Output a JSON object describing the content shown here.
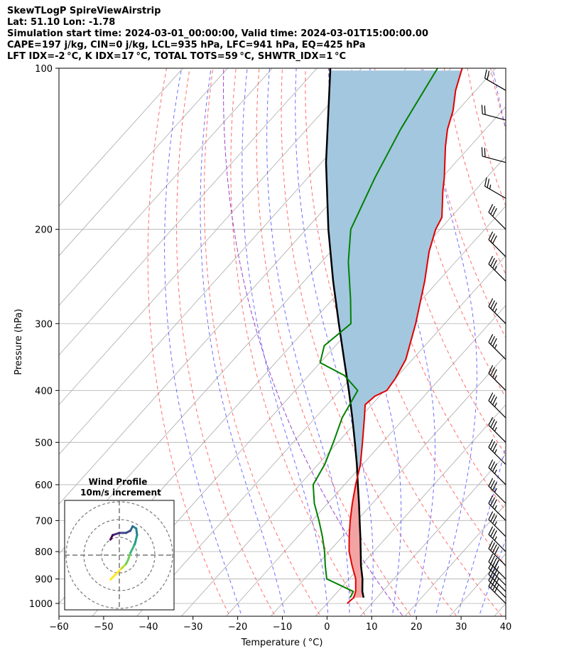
{
  "header": {
    "line1": "SkewTLogP SpireViewAirstrip",
    "line2": "Lat: 51.10   Lon: -1.78",
    "line3": "Simulation start time: 2024-03-01_00:00:00, Valid time: 2024-03-01T15:00:00.00",
    "line4": "CAPE=197 j/kg, CIN=0 j/kg, LCL=935 hPa, LFC=941 hPa, EQ=425 hPa",
    "line5": "LFT IDX=-2 °C, K IDX=17 °C, TOTAL TOTS=59 °C, SHWTR_IDX=1 °C"
  },
  "chart_data": [
    {
      "type": "skew-t log-p",
      "xlabel": "Temperature ( °C)",
      "ylabel": "Pressure (hPa)",
      "xlim": [
        -60,
        40
      ],
      "ylim": [
        1050,
        100
      ],
      "y_scale": "log",
      "x_ticks": [
        "−60",
        "−50",
        "−40",
        "−30",
        "−20",
        "−10",
        "0",
        "10",
        "20",
        "30",
        "40"
      ],
      "y_ticks": [
        "100",
        "200",
        "300",
        "400",
        "500",
        "600",
        "700",
        "800",
        "900",
        "1000"
      ],
      "grid": true,
      "series": [
        {
          "kind": "temperature",
          "color": "#e00000",
          "points": [
            [
              1000,
              4.5
            ],
            [
              975,
              4.8
            ],
            [
              950,
              4.0
            ],
            [
              900,
              1.5
            ],
            [
              850,
              -2.0
            ],
            [
              800,
              -5.5
            ],
            [
              750,
              -8.5
            ],
            [
              700,
              -11.5
            ],
            [
              650,
              -14.5
            ],
            [
              600,
              -17.5
            ],
            [
              550,
              -20.5
            ],
            [
              500,
              -24.5
            ],
            [
              450,
              -29.0
            ],
            [
              425,
              -31.5
            ],
            [
              410,
              -31.0
            ],
            [
              400,
              -29.5
            ],
            [
              380,
              -30.0
            ],
            [
              350,
              -31.5
            ],
            [
              300,
              -36.5
            ],
            [
              250,
              -43.0
            ],
            [
              220,
              -48.0
            ],
            [
              200,
              -51.0
            ],
            [
              190,
              -52.0
            ],
            [
              170,
              -57.0
            ],
            [
              160,
              -59.5
            ],
            [
              140,
              -65.5
            ],
            [
              130,
              -68.5
            ],
            [
              120,
              -71.0
            ],
            [
              110,
              -74.5
            ],
            [
              100,
              -77.5
            ]
          ]
        },
        {
          "kind": "dewpoint",
          "color": "#008000",
          "points": [
            [
              975,
              4.0
            ],
            [
              950,
              3.5
            ],
            [
              900,
              -5.0
            ],
            [
              850,
              -8.0
            ],
            [
              800,
              -11.0
            ],
            [
              750,
              -14.5
            ],
            [
              700,
              -18.5
            ],
            [
              650,
              -23.0
            ],
            [
              600,
              -27.0
            ],
            [
              550,
              -28.5
            ],
            [
              500,
              -31.0
            ],
            [
              450,
              -34.0
            ],
            [
              400,
              -36.0
            ],
            [
              375,
              -42.0
            ],
            [
              355,
              -50.0
            ],
            [
              330,
              -52.5
            ],
            [
              300,
              -51.0
            ],
            [
              270,
              -56.0
            ],
            [
              230,
              -64.0
            ],
            [
              200,
              -70.0
            ],
            [
              160,
              -75.0
            ],
            [
              130,
              -79.0
            ],
            [
              100,
              -83.0
            ]
          ]
        },
        {
          "kind": "parcel",
          "color": "#000000",
          "points": [
            [
              975,
              7.0
            ],
            [
              950,
              5.5
            ],
            [
              900,
              3.0
            ],
            [
              850,
              0.0
            ],
            [
              800,
              -2.9
            ],
            [
              750,
              -6.0
            ],
            [
              700,
              -9.4
            ],
            [
              650,
              -13.0
            ],
            [
              600,
              -17.0
            ],
            [
              550,
              -21.3
            ],
            [
              500,
              -26.2
            ],
            [
              450,
              -31.7
            ],
            [
              400,
              -38.0
            ],
            [
              350,
              -45.3
            ],
            [
              300,
              -53.7
            ],
            [
              250,
              -63.5
            ],
            [
              200,
              -75.0
            ],
            [
              150,
              -89.0
            ],
            [
              100,
              -107.0
            ]
          ]
        }
      ],
      "shading": [
        {
          "between": [
            "parcel",
            "temperature"
          ],
          "region": "parcel warmer",
          "color": "#f4a3a3"
        },
        {
          "between": [
            "parcel",
            "temperature"
          ],
          "region": "parcel colder",
          "color": "#a3c7df"
        }
      ],
      "wind_barbs": [
        {
          "p": 1000,
          "dir": 315,
          "speed": 40
        },
        {
          "p": 975,
          "dir": 315,
          "speed": 40
        },
        {
          "p": 950,
          "dir": 315,
          "speed": 40
        },
        {
          "p": 925,
          "dir": 315,
          "speed": 40
        },
        {
          "p": 900,
          "dir": 315,
          "speed": 40
        },
        {
          "p": 850,
          "dir": 315,
          "speed": 40
        },
        {
          "p": 800,
          "dir": 315,
          "speed": 35
        },
        {
          "p": 750,
          "dir": 315,
          "speed": 35
        },
        {
          "p": 700,
          "dir": 315,
          "speed": 35
        },
        {
          "p": 650,
          "dir": 315,
          "speed": 35
        },
        {
          "p": 600,
          "dir": 315,
          "speed": 35
        },
        {
          "p": 550,
          "dir": 315,
          "speed": 35
        },
        {
          "p": 500,
          "dir": 315,
          "speed": 35
        },
        {
          "p": 450,
          "dir": 315,
          "speed": 35
        },
        {
          "p": 400,
          "dir": 315,
          "speed": 35
        },
        {
          "p": 350,
          "dir": 315,
          "speed": 35
        },
        {
          "p": 300,
          "dir": 315,
          "speed": 35
        },
        {
          "p": 250,
          "dir": 315,
          "speed": 35
        },
        {
          "p": 225,
          "dir": 315,
          "speed": 30
        },
        {
          "p": 200,
          "dir": 315,
          "speed": 30
        },
        {
          "p": 175,
          "dir": 300,
          "speed": 25
        },
        {
          "p": 150,
          "dir": 285,
          "speed": 20
        },
        {
          "p": 125,
          "dir": 285,
          "speed": 20
        },
        {
          "p": 110,
          "dir": 300,
          "speed": 20
        }
      ],
      "isotherms": {
        "color": "#aaaaaa",
        "step_c": 10,
        "from_c": -140,
        "to_c": 40
      },
      "dry_adiabats": {
        "color": "#ff5555",
        "thetas_k": [
          250,
          260,
          270,
          280,
          290,
          300,
          310,
          320,
          330,
          340,
          350,
          360,
          370,
          380,
          390,
          400,
          410,
          420,
          430
        ]
      },
      "moist_adiabats": {
        "color": "#5555ff",
        "start_temps_c": [
          -20,
          -10,
          0,
          5,
          10,
          15,
          20,
          25,
          30,
          35
        ]
      },
      "special_line": {
        "color": "#9944cc"
      }
    },
    {
      "type": "hodograph",
      "title": "Wind Profile",
      "subtitle": "10m/s increment",
      "ring_increment_ms": 10,
      "rings": 3,
      "colormap": "viridis",
      "points": [
        [
          -2.0,
          -5.5
        ],
        [
          -1.0,
          -4.5
        ],
        [
          0.5,
          -3.0
        ],
        [
          1.5,
          -2.0
        ],
        [
          2.0,
          -1.0
        ],
        [
          2.5,
          0.5
        ],
        [
          3.5,
          2.5
        ],
        [
          4.0,
          4.5
        ],
        [
          3.8,
          6.0
        ],
        [
          3.0,
          6.5
        ],
        [
          2.5,
          5.5
        ],
        [
          1.5,
          5.0
        ],
        [
          0.0,
          5.0
        ],
        [
          -1.5,
          4.5
        ],
        [
          -2.0,
          3.5
        ]
      ]
    }
  ]
}
